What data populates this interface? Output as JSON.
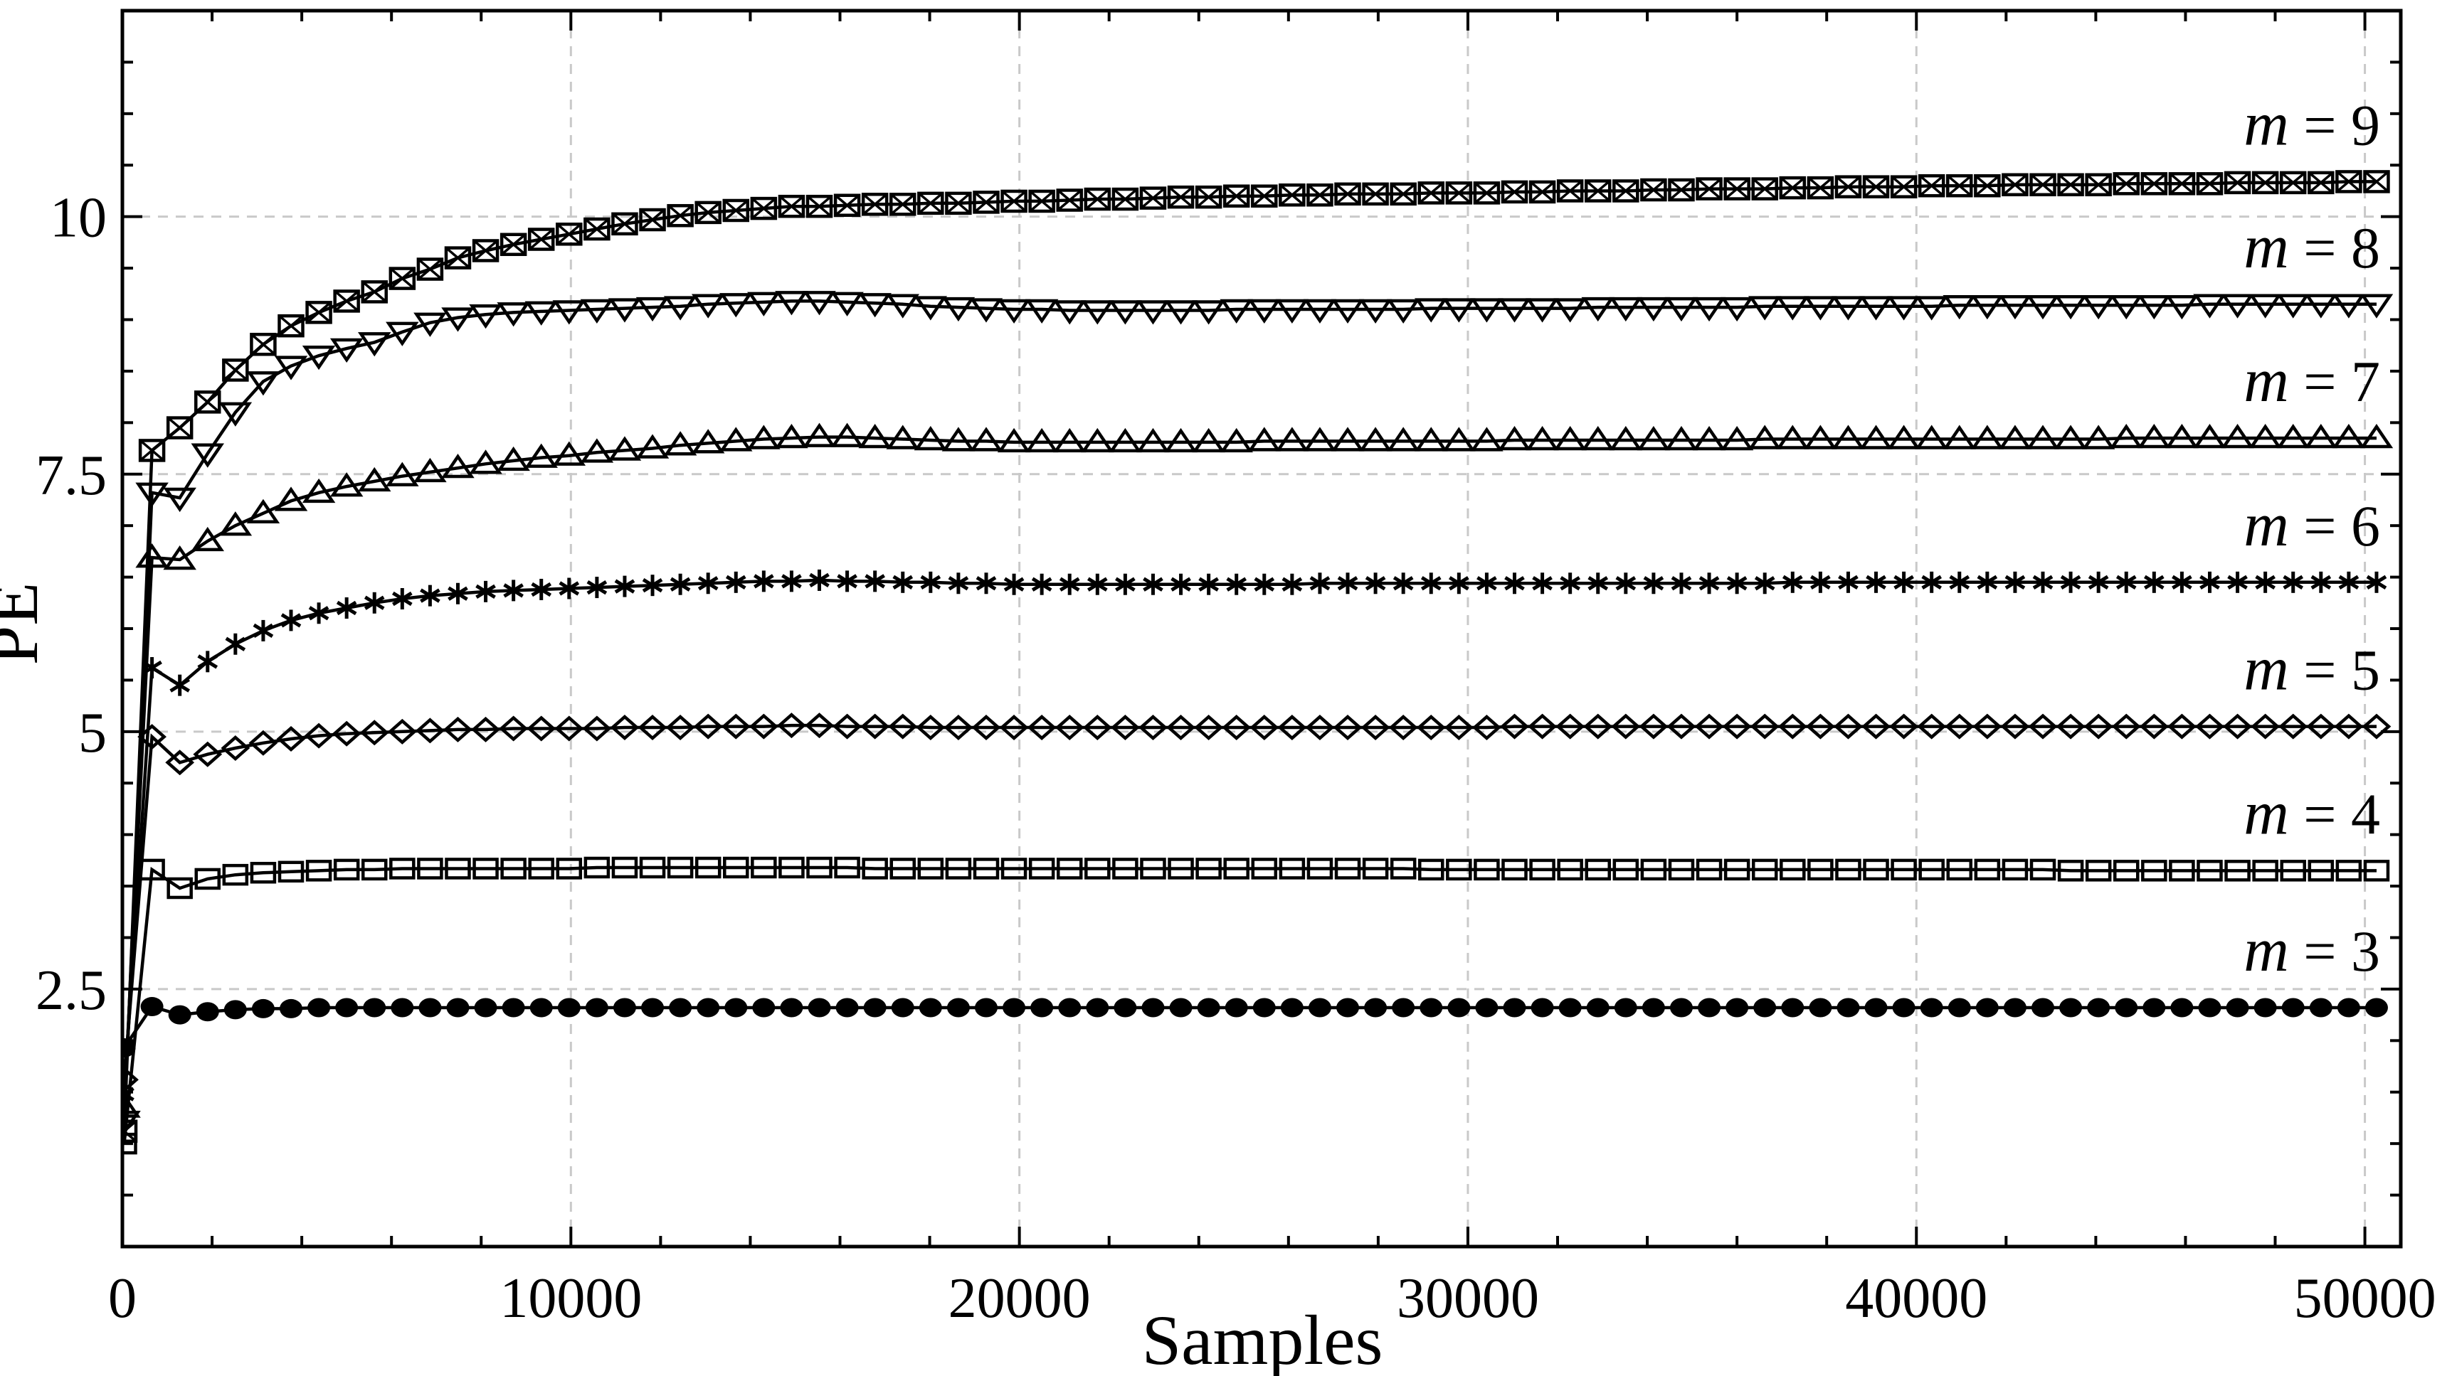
{
  "page": {
    "background": "#ffffff",
    "accent": "#000000"
  },
  "chart_data": {
    "type": "line",
    "title": "",
    "xlabel": "Samples",
    "ylabel": "PE",
    "xlim": [
      0,
      50800
    ],
    "ylim": [
      0,
      12
    ],
    "x_major_ticks": [
      0,
      10000,
      20000,
      30000,
      40000,
      50000
    ],
    "x_tick_labels": [
      "0",
      "10000",
      "20000",
      "30000",
      "40000",
      "50000"
    ],
    "x_minor_step": 2000,
    "y_major_ticks": [
      2.5,
      5,
      7.5,
      10
    ],
    "y_tick_labels": [
      "2.5",
      "5",
      "7.5",
      "10"
    ],
    "y_minor_step": 0.5,
    "grid": {
      "show": true,
      "color": "#c9c9c9",
      "dash": "14 11"
    },
    "colors": {
      "axis": "#000000",
      "series": "#000000",
      "background": "#ffffff"
    },
    "legend_position": "inline-right-above-curves",
    "x": [
      40,
      660,
      1280,
      1900,
      2520,
      3140,
      3760,
      4380,
      5000,
      5620,
      6240,
      6860,
      7480,
      8100,
      8720,
      9340,
      9960,
      10580,
      11200,
      11820,
      12440,
      13060,
      13680,
      14300,
      14920,
      15540,
      16160,
      16780,
      17400,
      18020,
      18640,
      19260,
      19880,
      20500,
      21120,
      21740,
      22360,
      22980,
      23600,
      24220,
      24840,
      25460,
      26080,
      26700,
      27320,
      27940,
      28560,
      29180,
      29800,
      30420,
      31040,
      31660,
      32280,
      32900,
      33520,
      34140,
      34760,
      35380,
      36000,
      36620,
      37240,
      37860,
      38480,
      39100,
      39720,
      40340,
      40960,
      41580,
      42200,
      42820,
      43440,
      44060,
      44680,
      45300,
      45920,
      46540,
      47160,
      47780,
      48400,
      49020,
      49640,
      50260
    ],
    "series": [
      {
        "name": "m9",
        "label": "m = 9",
        "marker": "crossed-square",
        "values": [
          1.12,
          7.73,
          7.95,
          8.2,
          8.51,
          8.76,
          8.94,
          9.07,
          9.18,
          9.27,
          9.4,
          9.49,
          9.6,
          9.67,
          9.73,
          9.78,
          9.83,
          9.88,
          9.93,
          9.97,
          10.01,
          10.04,
          10.06,
          10.08,
          10.1,
          10.1,
          10.11,
          10.12,
          10.12,
          10.13,
          10.13,
          10.14,
          10.15,
          10.15,
          10.16,
          10.17,
          10.17,
          10.18,
          10.19,
          10.19,
          10.2,
          10.2,
          10.21,
          10.21,
          10.22,
          10.22,
          10.22,
          10.23,
          10.23,
          10.23,
          10.24,
          10.24,
          10.25,
          10.25,
          10.25,
          10.26,
          10.26,
          10.27,
          10.27,
          10.27,
          10.28,
          10.28,
          10.29,
          10.29,
          10.29,
          10.3,
          10.3,
          10.3,
          10.31,
          10.31,
          10.31,
          10.31,
          10.32,
          10.32,
          10.32,
          10.32,
          10.33,
          10.33,
          10.33,
          10.33,
          10.34,
          10.34
        ]
      },
      {
        "name": "m8",
        "label": "m = 8",
        "marker": "triangle-down",
        "values": [
          1.22,
          7.32,
          7.27,
          7.7,
          8.1,
          8.4,
          8.55,
          8.65,
          8.72,
          8.78,
          8.88,
          8.97,
          9.02,
          9.05,
          9.07,
          9.08,
          9.09,
          9.1,
          9.11,
          9.12,
          9.13,
          9.15,
          9.16,
          9.17,
          9.18,
          9.18,
          9.17,
          9.16,
          9.15,
          9.13,
          9.12,
          9.11,
          9.1,
          9.1,
          9.09,
          9.09,
          9.09,
          9.09,
          9.09,
          9.09,
          9.1,
          9.1,
          9.1,
          9.1,
          9.1,
          9.1,
          9.1,
          9.11,
          9.11,
          9.11,
          9.11,
          9.11,
          9.11,
          9.12,
          9.12,
          9.12,
          9.12,
          9.12,
          9.12,
          9.13,
          9.13,
          9.13,
          9.13,
          9.13,
          9.13,
          9.13,
          9.14,
          9.14,
          9.14,
          9.14,
          9.14,
          9.14,
          9.14,
          9.14,
          9.14,
          9.15,
          9.15,
          9.15,
          9.15,
          9.15,
          9.15,
          9.15
        ]
      },
      {
        "name": "m7",
        "label": "m = 7",
        "marker": "triangle-up",
        "values": [
          1.35,
          6.69,
          6.67,
          6.85,
          7.0,
          7.12,
          7.24,
          7.32,
          7.38,
          7.43,
          7.48,
          7.52,
          7.56,
          7.6,
          7.63,
          7.66,
          7.68,
          7.71,
          7.73,
          7.75,
          7.78,
          7.8,
          7.82,
          7.84,
          7.85,
          7.86,
          7.86,
          7.85,
          7.84,
          7.83,
          7.82,
          7.82,
          7.81,
          7.81,
          7.81,
          7.81,
          7.81,
          7.81,
          7.81,
          7.81,
          7.81,
          7.82,
          7.82,
          7.82,
          7.82,
          7.82,
          7.82,
          7.82,
          7.82,
          7.82,
          7.83,
          7.83,
          7.83,
          7.83,
          7.83,
          7.83,
          7.83,
          7.83,
          7.83,
          7.84,
          7.84,
          7.84,
          7.84,
          7.84,
          7.84,
          7.84,
          7.84,
          7.84,
          7.84,
          7.84,
          7.84,
          7.84,
          7.85,
          7.85,
          7.85,
          7.85,
          7.85,
          7.85,
          7.85,
          7.85,
          7.85,
          7.85
        ]
      },
      {
        "name": "m6",
        "label": "m = 6",
        "marker": "asterisk",
        "values": [
          1.48,
          5.62,
          5.45,
          5.68,
          5.85,
          5.98,
          6.08,
          6.15,
          6.2,
          6.25,
          6.29,
          6.32,
          6.34,
          6.36,
          6.37,
          6.38,
          6.39,
          6.4,
          6.41,
          6.42,
          6.43,
          6.44,
          6.45,
          6.46,
          6.46,
          6.47,
          6.46,
          6.46,
          6.45,
          6.45,
          6.44,
          6.44,
          6.43,
          6.43,
          6.43,
          6.43,
          6.43,
          6.43,
          6.43,
          6.43,
          6.43,
          6.43,
          6.43,
          6.44,
          6.44,
          6.44,
          6.44,
          6.44,
          6.44,
          6.44,
          6.44,
          6.44,
          6.44,
          6.44,
          6.44,
          6.44,
          6.44,
          6.44,
          6.44,
          6.44,
          6.45,
          6.45,
          6.45,
          6.45,
          6.45,
          6.45,
          6.45,
          6.45,
          6.45,
          6.45,
          6.45,
          6.45,
          6.45,
          6.45,
          6.45,
          6.45,
          6.45,
          6.45,
          6.45,
          6.45,
          6.45,
          6.45
        ]
      },
      {
        "name": "m5",
        "label": "m = 5",
        "marker": "diamond",
        "values": [
          1.62,
          4.95,
          4.7,
          4.78,
          4.84,
          4.89,
          4.93,
          4.96,
          4.98,
          4.99,
          5.0,
          5.01,
          5.02,
          5.02,
          5.03,
          5.03,
          5.03,
          5.03,
          5.04,
          5.04,
          5.04,
          5.05,
          5.05,
          5.05,
          5.06,
          5.06,
          5.05,
          5.05,
          5.05,
          5.04,
          5.04,
          5.04,
          5.04,
          5.04,
          5.04,
          5.04,
          5.04,
          5.04,
          5.04,
          5.04,
          5.04,
          5.04,
          5.04,
          5.04,
          5.04,
          5.04,
          5.04,
          5.04,
          5.04,
          5.04,
          5.05,
          5.05,
          5.05,
          5.05,
          5.05,
          5.05,
          5.05,
          5.05,
          5.05,
          5.05,
          5.05,
          5.05,
          5.05,
          5.05,
          5.05,
          5.05,
          5.05,
          5.05,
          5.05,
          5.05,
          5.05,
          5.05,
          5.05,
          5.05,
          5.05,
          5.05,
          5.05,
          5.05,
          5.05,
          5.05,
          5.05,
          5.05
        ]
      },
      {
        "name": "m4",
        "label": "m = 4",
        "marker": "square",
        "values": [
          1.0,
          3.66,
          3.48,
          3.57,
          3.61,
          3.63,
          3.64,
          3.65,
          3.66,
          3.66,
          3.67,
          3.67,
          3.67,
          3.67,
          3.67,
          3.67,
          3.67,
          3.68,
          3.68,
          3.68,
          3.68,
          3.68,
          3.68,
          3.68,
          3.68,
          3.68,
          3.68,
          3.67,
          3.67,
          3.67,
          3.67,
          3.67,
          3.67,
          3.67,
          3.67,
          3.67,
          3.67,
          3.67,
          3.67,
          3.67,
          3.67,
          3.67,
          3.67,
          3.67,
          3.67,
          3.67,
          3.67,
          3.66,
          3.66,
          3.66,
          3.66,
          3.66,
          3.66,
          3.66,
          3.66,
          3.66,
          3.66,
          3.66,
          3.66,
          3.66,
          3.66,
          3.66,
          3.66,
          3.66,
          3.66,
          3.66,
          3.66,
          3.66,
          3.66,
          3.66,
          3.65,
          3.65,
          3.65,
          3.65,
          3.65,
          3.65,
          3.65,
          3.65,
          3.65,
          3.65,
          3.65,
          3.65
        ]
      },
      {
        "name": "m3",
        "label": "m = 3",
        "marker": "filled-circle",
        "values": [
          1.93,
          2.33,
          2.25,
          2.28,
          2.3,
          2.31,
          2.31,
          2.32,
          2.32,
          2.32,
          2.32,
          2.32,
          2.32,
          2.32,
          2.32,
          2.32,
          2.32,
          2.32,
          2.32,
          2.32,
          2.32,
          2.32,
          2.32,
          2.32,
          2.32,
          2.32,
          2.32,
          2.32,
          2.32,
          2.32,
          2.32,
          2.32,
          2.32,
          2.32,
          2.32,
          2.32,
          2.32,
          2.32,
          2.32,
          2.32,
          2.32,
          2.32,
          2.32,
          2.32,
          2.32,
          2.32,
          2.32,
          2.32,
          2.32,
          2.32,
          2.32,
          2.32,
          2.32,
          2.32,
          2.32,
          2.32,
          2.32,
          2.32,
          2.32,
          2.32,
          2.32,
          2.32,
          2.32,
          2.32,
          2.32,
          2.32,
          2.32,
          2.32,
          2.32,
          2.32,
          2.32,
          2.32,
          2.32,
          2.32,
          2.32,
          2.32,
          2.32,
          2.32,
          2.32,
          2.32,
          2.32,
          2.32
        ]
      }
    ]
  }
}
